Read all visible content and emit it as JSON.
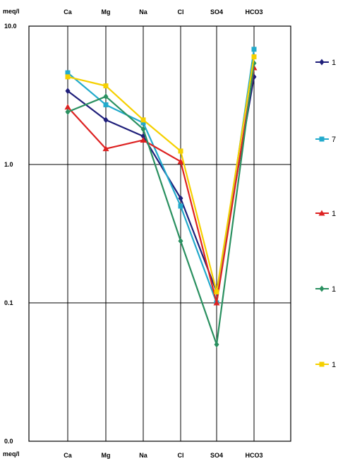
{
  "chart_data": {
    "type": "line",
    "ylabel": "meq/l",
    "y_scale": "log",
    "ylim": [
      0.01,
      10.0
    ],
    "y_tick_labels": [
      "10.0",
      "1.0",
      "0.1",
      "0.0"
    ],
    "y_tick_values": [
      10.0,
      1.0,
      0.1,
      0.01
    ],
    "categories": [
      "Ca",
      "Mg",
      "Na",
      "Cl",
      "SO4",
      "HCO3"
    ],
    "grid": true,
    "legend_position": "right",
    "series": [
      {
        "name": "1",
        "color": "#1f1f7a",
        "marker": "diamond",
        "values": [
          3.4,
          2.1,
          1.6,
          0.57,
          0.12,
          4.3
        ]
      },
      {
        "name": "7",
        "color": "#22aacc",
        "marker": "square",
        "values": [
          4.6,
          2.7,
          2.0,
          0.5,
          0.1,
          6.8
        ]
      },
      {
        "name": "1",
        "color": "#dd2222",
        "marker": "triangle",
        "values": [
          2.6,
          1.3,
          1.5,
          1.05,
          0.1,
          5.0
        ]
      },
      {
        "name": "1",
        "color": "#2a9060",
        "marker": "diamond",
        "values": [
          2.4,
          3.1,
          1.8,
          0.28,
          0.05,
          5.4
        ]
      },
      {
        "name": "1",
        "color": "#f5d000",
        "marker": "square",
        "values": [
          4.3,
          3.7,
          2.1,
          1.25,
          0.12,
          6.0
        ]
      }
    ]
  }
}
